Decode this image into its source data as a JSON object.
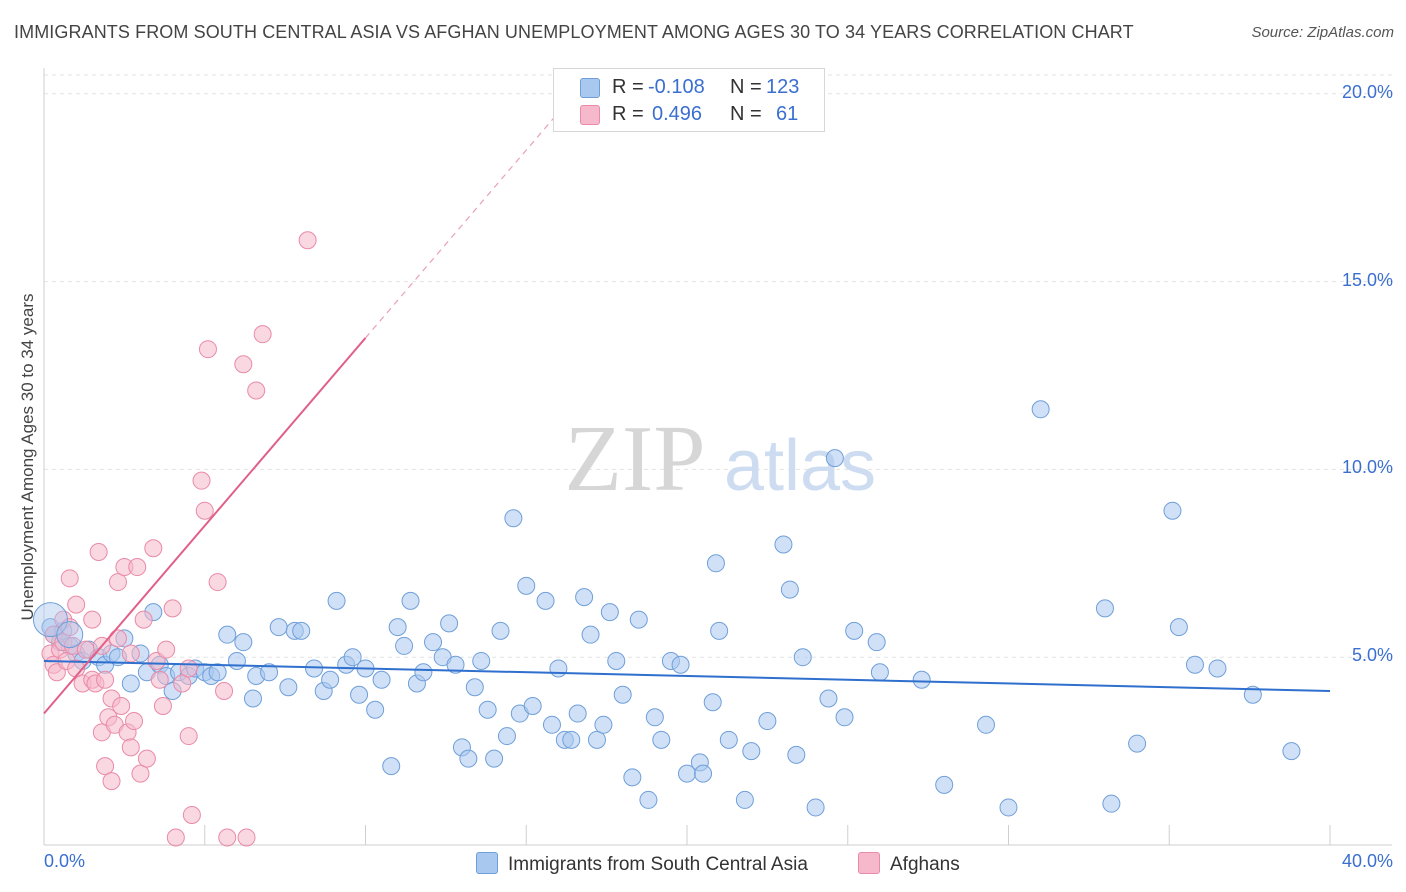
{
  "title": "IMMIGRANTS FROM SOUTH CENTRAL ASIA VS AFGHAN UNEMPLOYMENT AMONG AGES 30 TO 34 YEARS CORRELATION CHART",
  "source": "Source: ZipAtlas.com",
  "watermark": {
    "zip": "ZIP",
    "atlas": "atlas"
  },
  "legend": {
    "row1": {
      "r_label": "R =",
      "r_value": "-0.108",
      "n_label": "N =",
      "n_value": "123"
    },
    "row2": {
      "r_label": "R =",
      "r_value": "0.496",
      "n_label": "N =",
      "n_value": "61"
    }
  },
  "bottom_legend": {
    "series1": "Immigrants from South Central Asia",
    "series2": "Afghans"
  },
  "colors": {
    "blue_fill": "#a9c8f0",
    "blue_stroke": "#6f9fd8",
    "blue_line": "#2f6fce",
    "pink_fill": "#f6b8cb",
    "pink_stroke": "#e98aa8",
    "pink_line": "#e0608a",
    "tick_text": "#3a6fd0",
    "grid": "#e3e3e3"
  },
  "chart_data": {
    "type": "scatter",
    "title": "IMMIGRANTS FROM SOUTH CENTRAL ASIA VS AFGHAN UNEMPLOYMENT AMONG AGES 30 TO 34 YEARS CORRELATION CHART",
    "xlabel": "",
    "ylabel": "Unemployment Among Ages 30 to 34 years",
    "xlim": [
      0,
      40
    ],
    "ylim": [
      0,
      20.5
    ],
    "x_tick_labels": [
      "0.0%",
      "40.0%"
    ],
    "y_ticks": [
      5,
      10,
      15,
      20
    ],
    "y_tick_labels": [
      "5.0%",
      "10.0%",
      "15.0%",
      "20.0%"
    ],
    "grid": true,
    "legend_position": "top-center",
    "series": [
      {
        "name": "Immigrants from South Central Asia",
        "color": "#a9c8f0",
        "R": -0.108,
        "N": 123,
        "trend": {
          "x": [
            0,
            40
          ],
          "y": [
            4.9,
            4.1
          ]
        },
        "points": [
          [
            0.2,
            5.8
          ],
          [
            0.3,
            5.6
          ],
          [
            0.5,
            5.4
          ],
          [
            0.6,
            5.7
          ],
          [
            0.8,
            5.3
          ],
          [
            1.0,
            5.1
          ],
          [
            1.2,
            4.9
          ],
          [
            1.4,
            5.2
          ],
          [
            1.7,
            5.0
          ],
          [
            1.9,
            4.8
          ],
          [
            2.1,
            5.1
          ],
          [
            2.3,
            5.0
          ],
          [
            2.5,
            5.5
          ],
          [
            2.7,
            4.3
          ],
          [
            3.0,
            5.1
          ],
          [
            3.2,
            4.6
          ],
          [
            3.4,
            6.2
          ],
          [
            3.6,
            4.8
          ],
          [
            3.8,
            4.5
          ],
          [
            4.0,
            4.1
          ],
          [
            4.2,
            4.6
          ],
          [
            4.5,
            4.5
          ],
          [
            4.7,
            4.7
          ],
          [
            5.0,
            4.6
          ],
          [
            5.2,
            4.5
          ],
          [
            5.4,
            4.6
          ],
          [
            5.7,
            5.6
          ],
          [
            6.0,
            4.9
          ],
          [
            6.2,
            5.4
          ],
          [
            6.5,
            3.9
          ],
          [
            6.6,
            4.5
          ],
          [
            7.0,
            4.6
          ],
          [
            7.3,
            5.8
          ],
          [
            7.6,
            4.2
          ],
          [
            7.8,
            5.7
          ],
          [
            8.0,
            5.7
          ],
          [
            8.4,
            4.7
          ],
          [
            8.7,
            4.1
          ],
          [
            8.9,
            4.4
          ],
          [
            9.1,
            6.5
          ],
          [
            9.4,
            4.8
          ],
          [
            9.6,
            5.0
          ],
          [
            9.8,
            4.0
          ],
          [
            10.0,
            4.7
          ],
          [
            10.3,
            3.6
          ],
          [
            10.5,
            4.4
          ],
          [
            10.8,
            2.1
          ],
          [
            11.0,
            5.8
          ],
          [
            11.2,
            5.3
          ],
          [
            11.4,
            6.5
          ],
          [
            11.6,
            4.3
          ],
          [
            11.8,
            4.6
          ],
          [
            12.1,
            5.4
          ],
          [
            12.4,
            5.0
          ],
          [
            12.6,
            5.9
          ],
          [
            12.8,
            4.8
          ],
          [
            13.0,
            2.6
          ],
          [
            13.2,
            2.3
          ],
          [
            13.4,
            4.2
          ],
          [
            13.6,
            4.9
          ],
          [
            13.8,
            3.6
          ],
          [
            14.0,
            2.3
          ],
          [
            14.2,
            5.7
          ],
          [
            14.4,
            2.9
          ],
          [
            14.6,
            8.7
          ],
          [
            14.8,
            3.5
          ],
          [
            15.0,
            6.9
          ],
          [
            15.2,
            3.7
          ],
          [
            15.6,
            6.5
          ],
          [
            15.8,
            3.2
          ],
          [
            16.0,
            4.7
          ],
          [
            16.2,
            2.8
          ],
          [
            16.4,
            2.8
          ],
          [
            16.6,
            3.5
          ],
          [
            16.8,
            6.6
          ],
          [
            17.0,
            5.6
          ],
          [
            17.2,
            2.8
          ],
          [
            17.4,
            3.2
          ],
          [
            17.6,
            6.2
          ],
          [
            17.8,
            4.9
          ],
          [
            18.0,
            4.0
          ],
          [
            18.3,
            1.8
          ],
          [
            18.5,
            6.0
          ],
          [
            18.8,
            1.2
          ],
          [
            19.0,
            3.4
          ],
          [
            19.2,
            2.8
          ],
          [
            19.5,
            4.9
          ],
          [
            19.8,
            4.8
          ],
          [
            20.0,
            1.9
          ],
          [
            20.4,
            2.2
          ],
          [
            20.5,
            1.9
          ],
          [
            20.8,
            3.8
          ],
          [
            20.9,
            7.5
          ],
          [
            21.0,
            5.7
          ],
          [
            21.3,
            2.8
          ],
          [
            21.8,
            1.2
          ],
          [
            22.0,
            2.5
          ],
          [
            22.5,
            3.3
          ],
          [
            23.0,
            8.0
          ],
          [
            23.2,
            6.8
          ],
          [
            23.4,
            2.4
          ],
          [
            23.6,
            5.0
          ],
          [
            24.0,
            1.0
          ],
          [
            24.4,
            3.9
          ],
          [
            24.6,
            10.3
          ],
          [
            24.9,
            3.4
          ],
          [
            25.2,
            5.7
          ],
          [
            25.9,
            5.4
          ],
          [
            26.0,
            4.6
          ],
          [
            27.3,
            4.4
          ],
          [
            28.0,
            1.6
          ],
          [
            29.3,
            3.2
          ],
          [
            30.0,
            1.0
          ],
          [
            31.0,
            11.6
          ],
          [
            33.0,
            6.3
          ],
          [
            33.2,
            1.1
          ],
          [
            34.0,
            2.7
          ],
          [
            35.1,
            8.9
          ],
          [
            35.3,
            5.8
          ],
          [
            35.8,
            4.8
          ],
          [
            36.5,
            4.7
          ],
          [
            37.6,
            4.0
          ],
          [
            38.8,
            2.5
          ]
        ]
      },
      {
        "name": "Afghans",
        "color": "#f6b8cb",
        "R": 0.496,
        "N": 61,
        "trend": {
          "x": [
            0,
            10
          ],
          "y": [
            3.5,
            13.5
          ]
        },
        "trend_dashed": {
          "x": [
            10,
            16
          ],
          "y": [
            13.5,
            19.5
          ]
        },
        "points": [
          [
            0.2,
            5.1
          ],
          [
            0.3,
            4.8
          ],
          [
            0.3,
            5.6
          ],
          [
            0.4,
            4.6
          ],
          [
            0.5,
            5.2
          ],
          [
            0.6,
            6.0
          ],
          [
            0.6,
            5.4
          ],
          [
            0.7,
            4.9
          ],
          [
            0.8,
            7.1
          ],
          [
            0.8,
            5.8
          ],
          [
            0.9,
            5.3
          ],
          [
            1.0,
            4.7
          ],
          [
            1.0,
            6.4
          ],
          [
            1.2,
            4.3
          ],
          [
            1.3,
            5.2
          ],
          [
            1.5,
            4.4
          ],
          [
            1.5,
            6.0
          ],
          [
            1.6,
            4.3
          ],
          [
            1.7,
            7.8
          ],
          [
            1.8,
            5.3
          ],
          [
            1.8,
            3.0
          ],
          [
            1.9,
            2.1
          ],
          [
            1.9,
            4.4
          ],
          [
            2.0,
            3.4
          ],
          [
            2.1,
            1.7
          ],
          [
            2.1,
            3.9
          ],
          [
            2.2,
            3.2
          ],
          [
            2.3,
            5.5
          ],
          [
            2.3,
            7.0
          ],
          [
            2.4,
            3.7
          ],
          [
            2.5,
            7.4
          ],
          [
            2.6,
            3.0
          ],
          [
            2.7,
            5.1
          ],
          [
            2.7,
            2.6
          ],
          [
            2.8,
            3.3
          ],
          [
            2.9,
            7.4
          ],
          [
            3.0,
            1.9
          ],
          [
            3.1,
            6.0
          ],
          [
            3.2,
            2.3
          ],
          [
            3.4,
            7.9
          ],
          [
            3.5,
            4.9
          ],
          [
            3.6,
            4.4
          ],
          [
            3.7,
            3.7
          ],
          [
            3.8,
            5.2
          ],
          [
            4.0,
            6.3
          ],
          [
            4.1,
            0.2
          ],
          [
            4.3,
            4.3
          ],
          [
            4.5,
            4.7
          ],
          [
            4.6,
            0.8
          ],
          [
            4.9,
            9.7
          ],
          [
            5.0,
            8.9
          ],
          [
            5.1,
            13.2
          ],
          [
            5.4,
            7.0
          ],
          [
            5.6,
            4.1
          ],
          [
            5.7,
            0.2
          ],
          [
            6.2,
            12.8
          ],
          [
            6.3,
            0.2
          ],
          [
            6.6,
            12.1
          ],
          [
            6.8,
            13.6
          ],
          [
            8.2,
            16.1
          ],
          [
            4.5,
            2.9
          ]
        ]
      }
    ]
  }
}
